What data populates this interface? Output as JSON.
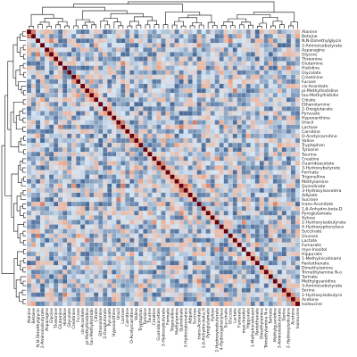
{
  "chart_data": {
    "type": "heatmap",
    "title": "",
    "xlabel": "",
    "ylabel": "",
    "labels": [
      "Alanine",
      "Betaine",
      "N,N-Dimethylglycin",
      "2-Aminoisobutyrate",
      "Asparagine",
      "Glycine",
      "Threonine",
      "Glutamine",
      "Histidine",
      "Glycolate",
      "Creatinine",
      "Fucose",
      "cis-Aconitate",
      "pi-Methylhistidine",
      "tau-Methylhistidin",
      "Citrate",
      "Ethanolamine",
      "2-Oxoglutarate",
      "Pyruvate",
      "Hypoxanthine",
      "Uracil",
      "Lactose",
      "Carnitine",
      "O-Acetylcarnitine",
      "Valine",
      "Tryptophan",
      "Tyrosine",
      "Taurine",
      "Creatine",
      "Guanidoacetate",
      "3-Hydroxybutyrate",
      "Formate",
      "Trigonelline",
      "Methylamine",
      "Quinolinate",
      "3-Hydroxyisovalera",
      "Adipate",
      "Sucrose",
      "trans-Aconitate",
      "1,6-Anhydro-beta-D",
      "Pyroglutamate",
      "Xylose",
      "2-Hydroxyisobutyrate",
      "4-Hydroxyphenylace",
      "Succinate",
      "Glucose",
      "Lactate",
      "Fumarate",
      "myo-Inositol",
      "Hippurate",
      "1-Methylnicotinami",
      "Pantothenate",
      "Dimethylamine",
      "Trimethylamine N-o",
      "Tartrate",
      "Methylguanidine",
      "3-Aminoisobutyrate",
      "Serine",
      "2-Hydroxyisobutyra",
      "Acetone",
      "Isoleucine"
    ],
    "colorscale": {
      "low": "#08306b",
      "mid": "#d6e6f4",
      "high": "#67000d",
      "range": [
        -1,
        1
      ]
    },
    "diagonal_value": 1,
    "seed": 7,
    "grid": true,
    "dendrogram": "top-and-left"
  }
}
